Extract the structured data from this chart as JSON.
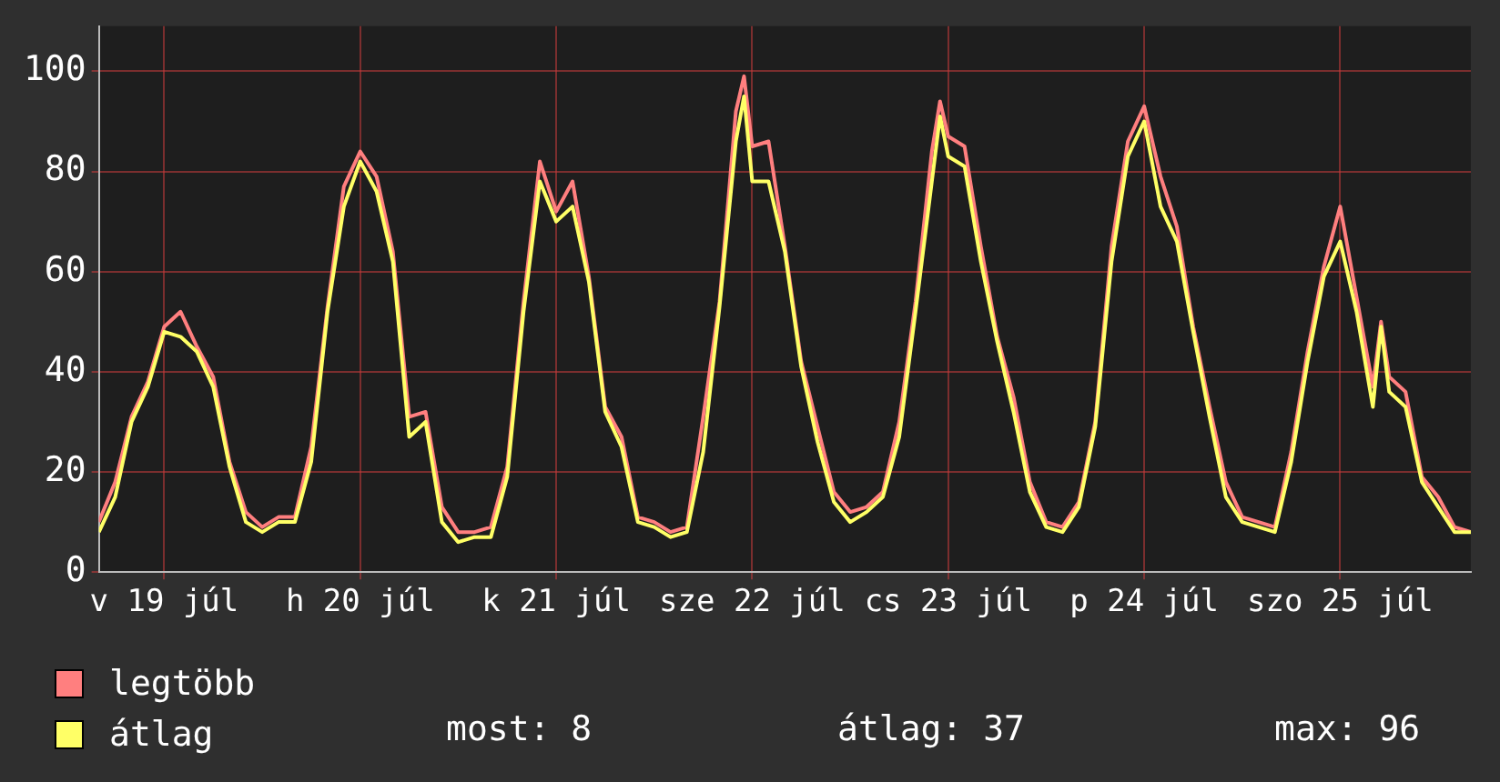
{
  "chart_data": {
    "type": "line",
    "x": [
      "--07-19T04:00",
      "--07-19T06:00",
      "--07-19T08:00",
      "--07-19T10:00",
      "--07-19T12:00",
      "--07-19T14:00",
      "--07-19T16:00",
      "--07-19T18:00",
      "--07-19T20:00",
      "--07-19T22:00",
      "--07-20T00:00",
      "--07-20T02:00",
      "--07-20T04:00",
      "--07-20T06:00",
      "--07-20T08:00",
      "--07-20T10:00",
      "--07-20T12:00",
      "--07-20T14:00",
      "--07-20T16:00",
      "--07-20T18:00",
      "--07-20T20:00",
      "--07-20T22:00",
      "--07-21T00:00",
      "--07-21T02:00",
      "--07-21T04:00",
      "--07-21T06:00",
      "--07-21T08:00",
      "--07-21T10:00",
      "--07-21T12:00",
      "--07-21T14:00",
      "--07-21T16:00",
      "--07-21T18:00",
      "--07-21T20:00",
      "--07-21T22:00",
      "--07-22T00:00",
      "--07-22T02:00",
      "--07-22T04:00",
      "--07-22T06:00",
      "--07-22T08:00",
      "--07-22T10:00",
      "--07-22T11:00",
      "--07-22T12:00",
      "--07-22T14:00",
      "--07-22T16:00",
      "--07-22T18:00",
      "--07-22T20:00",
      "--07-22T22:00",
      "--07-23T00:00",
      "--07-23T02:00",
      "--07-23T04:00",
      "--07-23T06:00",
      "--07-23T08:00",
      "--07-23T10:00",
      "--07-23T11:00",
      "--07-23T12:00",
      "--07-23T14:00",
      "--07-23T16:00",
      "--07-23T18:00",
      "--07-23T20:00",
      "--07-23T22:00",
      "--07-24T00:00",
      "--07-24T02:00",
      "--07-24T04:00",
      "--07-24T06:00",
      "--07-24T08:00",
      "--07-24T10:00",
      "--07-24T12:00",
      "--07-24T14:00",
      "--07-24T16:00",
      "--07-24T18:00",
      "--07-24T20:00",
      "--07-24T22:00",
      "--07-25T00:00",
      "--07-25T02:00",
      "--07-25T04:00",
      "--07-25T06:00",
      "--07-25T08:00",
      "--07-25T10:00",
      "--07-25T12:00",
      "--07-25T14:00",
      "--07-25T16:00",
      "--07-25T17:00",
      "--07-25T18:00",
      "--07-25T20:00",
      "--07-25T22:00",
      "--07-26T00:00",
      "--07-26T02:00",
      "--07-26T04:00"
    ],
    "series": [
      {
        "name": "legtöbb",
        "color": "#ff7f7f",
        "values": [
          10,
          18,
          31,
          38,
          49,
          52,
          45,
          39,
          22,
          12,
          9,
          11,
          11,
          25,
          53,
          77,
          84,
          79,
          64,
          31,
          32,
          13,
          8,
          8,
          9,
          21,
          54,
          82,
          72,
          78,
          59,
          33,
          27,
          11,
          10,
          8,
          9,
          31,
          54,
          92,
          99,
          85,
          86,
          65,
          42,
          29,
          16,
          12,
          13,
          16,
          30,
          54,
          84,
          94,
          87,
          85,
          65,
          47,
          35,
          18,
          10,
          9,
          14,
          30,
          65,
          86,
          93,
          79,
          69,
          49,
          33,
          18,
          11,
          10,
          9,
          24,
          44,
          61,
          73,
          55,
          37,
          50,
          39,
          36,
          19,
          15,
          9,
          8
        ]
      },
      {
        "name": "átlag",
        "color": "#ffff66",
        "values": [
          8,
          15,
          30,
          37,
          48,
          47,
          44,
          37,
          21,
          10,
          8,
          10,
          10,
          22,
          52,
          73,
          82,
          76,
          62,
          27,
          30,
          10,
          6,
          7,
          7,
          19,
          52,
          78,
          70,
          73,
          58,
          32,
          25,
          10,
          9,
          7,
          8,
          24,
          53,
          86,
          95,
          78,
          78,
          64,
          41,
          26,
          14,
          10,
          12,
          15,
          27,
          52,
          78,
          91,
          83,
          81,
          62,
          46,
          32,
          16,
          9,
          8,
          13,
          29,
          62,
          83,
          90,
          73,
          66,
          48,
          31,
          15,
          10,
          9,
          8,
          22,
          42,
          59,
          66,
          52,
          33,
          49,
          36,
          33,
          18,
          13,
          8,
          8
        ]
      }
    ],
    "xlim": [
      "--07-19T04:00",
      "--07-26T04:00"
    ],
    "xticks": [
      {
        "value": "--07-19T12:00",
        "label": "v 19 júl"
      },
      {
        "value": "--07-20T12:00",
        "label": "h 20 júl"
      },
      {
        "value": "--07-21T12:00",
        "label": "k 21 júl"
      },
      {
        "value": "--07-22T12:00",
        "label": "sze 22 júl"
      },
      {
        "value": "--07-23T12:00",
        "label": "cs 23 júl"
      },
      {
        "value": "--07-24T12:00",
        "label": "p 24 júl"
      },
      {
        "value": "--07-25T12:00",
        "label": "szo 25 júl"
      }
    ],
    "ylim": [
      0,
      109
    ],
    "yticks": [
      0,
      20,
      40,
      60,
      80,
      100
    ],
    "grid": true,
    "legend": "bottom left",
    "annotations": [
      "most: 8",
      "átlag: 37",
      "max: 96"
    ]
  }
}
